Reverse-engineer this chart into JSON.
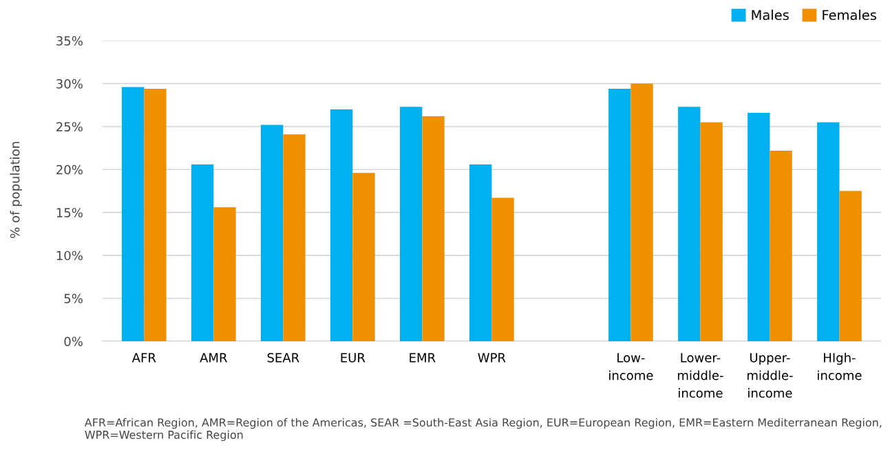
{
  "chart_data": {
    "type": "bar",
    "categories": [
      "AFR",
      "AMR",
      "SEAR",
      "EUR",
      "EMR",
      "WPR",
      null,
      "Low-\nincome",
      "Lower-\nmiddle-\nincome",
      "Upper-\nmiddle-\nincome",
      "HIgh-\nincome"
    ],
    "series": [
      {
        "name": "Males",
        "color": "#00b0f0",
        "values": [
          29.6,
          20.6,
          25.2,
          27.0,
          27.3,
          20.6,
          null,
          29.4,
          27.3,
          26.6,
          25.5
        ]
      },
      {
        "name": "Females",
        "color": "#f09000",
        "values": [
          29.4,
          15.6,
          24.1,
          19.6,
          26.2,
          16.7,
          null,
          30.0,
          25.5,
          22.2,
          17.5
        ]
      }
    ],
    "ylabel": "% of population",
    "ylim": [
      0,
      35
    ],
    "yticks": [
      {
        "value": 0,
        "label": "0%"
      },
      {
        "value": 5,
        "label": "5%"
      },
      {
        "value": 10,
        "label": "10%"
      },
      {
        "value": 15,
        "label": "15%"
      },
      {
        "value": 20,
        "label": "20%"
      },
      {
        "value": 25,
        "label": "25%"
      },
      {
        "value": 30,
        "label": "30%"
      },
      {
        "value": 35,
        "label": "35%"
      }
    ],
    "grid": "y",
    "legend": "top right",
    "annotations": [
      "AFR=African Region, AMR=Region of the Americas, SEAR =South-East Asia Region, EUR=European Region, EMR=Eastern Mediterranean Region, WPR=Western Pacific Region"
    ]
  }
}
